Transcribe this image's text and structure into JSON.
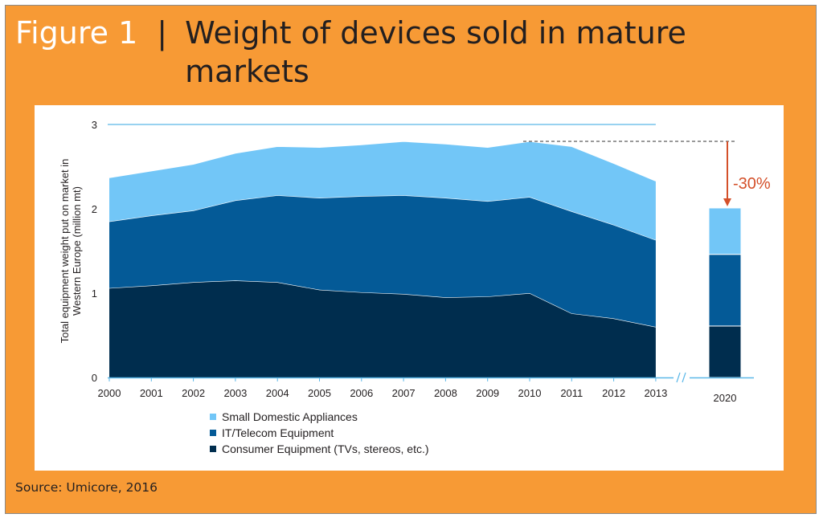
{
  "figure": {
    "label": "Figure 1",
    "separator": "|",
    "title": "Weight of devices sold in mature markets",
    "source": "Source: Umicore, 2016"
  },
  "chart_data": {
    "type": "area",
    "stacked": true,
    "ylabel_lines": [
      "Total equipment weight put on market in",
      "Western Europe (million mt)"
    ],
    "ylim": [
      0,
      3
    ],
    "yticks": [
      0,
      1,
      2,
      3
    ],
    "x": [
      "2000",
      "2001",
      "2002",
      "2003",
      "2004",
      "2005",
      "2006",
      "2007",
      "2008",
      "2009",
      "2010",
      "2011",
      "2012",
      "2013"
    ],
    "series": [
      {
        "name": "Consumer Equipment (TVs, stereos, etc.)",
        "color": "#002D4E",
        "values": [
          1.06,
          1.09,
          1.13,
          1.15,
          1.13,
          1.04,
          1.01,
          0.99,
          0.95,
          0.96,
          1.0,
          0.76,
          0.7,
          0.6
        ]
      },
      {
        "name": "IT/Telecom Equipment",
        "color": "#045A97",
        "values": [
          0.79,
          0.83,
          0.85,
          0.95,
          1.03,
          1.09,
          1.14,
          1.17,
          1.18,
          1.13,
          1.14,
          1.21,
          1.11,
          1.03
        ]
      },
      {
        "name": "Small Domestic Appliances",
        "color": "#72C6F7",
        "values": [
          0.52,
          0.53,
          0.55,
          0.56,
          0.58,
          0.6,
          0.61,
          0.64,
          0.64,
          0.64,
          0.66,
          0.77,
          0.73,
          0.7
        ]
      }
    ],
    "forecast": {
      "label": "2020",
      "values": [
        0.61,
        0.85,
        0.55
      ]
    },
    "annotation": {
      "text": "-30%",
      "color": "#D4502A"
    },
    "legend_order": [
      2,
      1,
      0
    ],
    "legend_position": "bottom-left",
    "grid": false
  }
}
